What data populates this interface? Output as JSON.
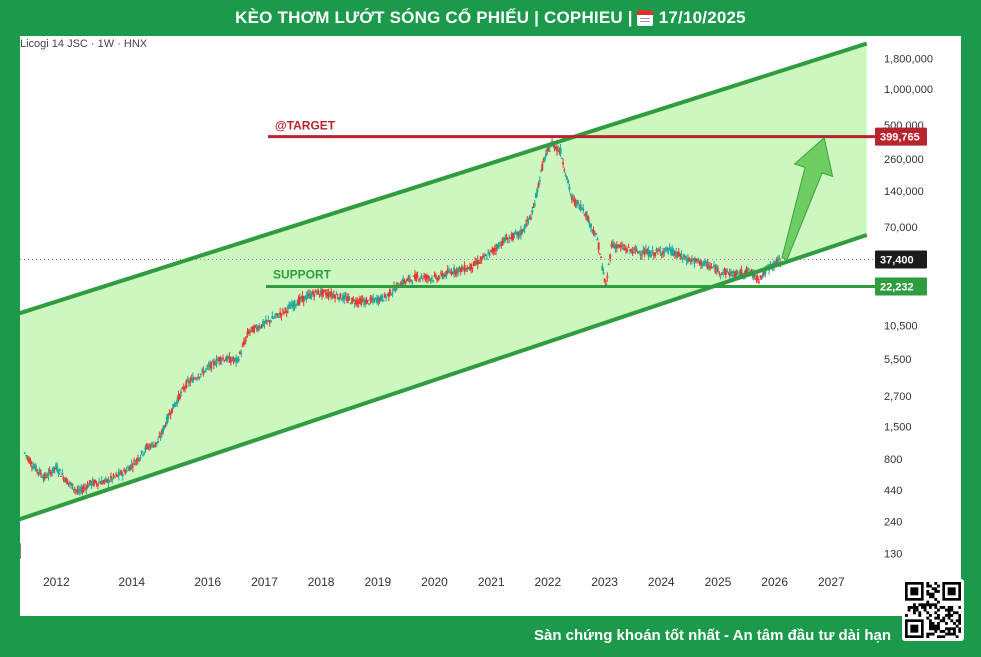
{
  "header": {
    "title": "KÈO THƠM LƯỚT SÓNG CỔ PHIẾU | COPHIEU |",
    "calendar_icon": "calendar-icon",
    "date": "17/10/2025"
  },
  "footer": {
    "slogan": "Sàn chứng khoán tốt nhất - An tâm đầu tư dài hạn",
    "qr_icon": "qr-code-icon"
  },
  "colors": {
    "frame": "#1a9a4a",
    "channel_fill": "#ccf7c0",
    "channel_line": "#2e9c3f",
    "target_line": "#b8242e",
    "support_line": "#2e9c3f",
    "up_candle": "#26a69a",
    "down_candle": "#e53935"
  },
  "chart_data": {
    "type": "candlestick",
    "symbol": "Licogi 14 JSC · 1W · HNX",
    "y_scale": "log",
    "ylim": [
      100,
      2500000
    ],
    "y_ticks": [
      "1,800,000",
      "1,000,000",
      "500,000",
      "260,000",
      "140,000",
      "70,000",
      "10,500",
      "5,500",
      "2,700",
      "1,500",
      "800",
      "440",
      "240",
      "130"
    ],
    "y_tick_values": [
      1800000,
      1000000,
      500000,
      260000,
      140000,
      70000,
      10500,
      5500,
      2700,
      1500,
      800,
      440,
      240,
      130
    ],
    "x_ticks": [
      "2012",
      "2014",
      "2016",
      "2017",
      "2018",
      "2019",
      "2020",
      "2021",
      "2022",
      "2023",
      "2024",
      "2025",
      "2026",
      "2027"
    ],
    "x_tick_values": [
      2012.0,
      2013.33,
      2014.67,
      2015.67,
      2016.67,
      2017.67,
      2018.67,
      2019.67,
      2020.67,
      2021.67,
      2022.67,
      2023.67,
      2024.67,
      2025.67
    ],
    "annotations": {
      "target_label": "@TARGET",
      "target_value": "399,765",
      "target_price": 399765,
      "support_label": "SUPPORT",
      "support_value": "22,232",
      "support_price": 22232,
      "last_price_label": "37,400",
      "last_price": 37400
    },
    "channel": {
      "upper_start": {
        "x": 2011.3,
        "y": 13000
      },
      "upper_end": {
        "x": 2026.3,
        "y": 2400000
      },
      "lower_start": {
        "x": 2011.3,
        "y": 245
      },
      "lower_end": {
        "x": 2026.3,
        "y": 60000
      }
    },
    "price_path": [
      {
        "x": 2011.45,
        "y": 900
      },
      {
        "x": 2011.6,
        "y": 700
      },
      {
        "x": 2011.8,
        "y": 560
      },
      {
        "x": 2012.0,
        "y": 680
      },
      {
        "x": 2012.2,
        "y": 520
      },
      {
        "x": 2012.4,
        "y": 420
      },
      {
        "x": 2012.6,
        "y": 500
      },
      {
        "x": 2012.9,
        "y": 520
      },
      {
        "x": 2013.2,
        "y": 620
      },
      {
        "x": 2013.4,
        "y": 760
      },
      {
        "x": 2013.6,
        "y": 1000
      },
      {
        "x": 2013.8,
        "y": 1100
      },
      {
        "x": 2014.0,
        "y": 1900
      },
      {
        "x": 2014.3,
        "y": 3400
      },
      {
        "x": 2014.6,
        "y": 4300
      },
      {
        "x": 2014.9,
        "y": 5600
      },
      {
        "x": 2015.2,
        "y": 5300
      },
      {
        "x": 2015.4,
        "y": 9300
      },
      {
        "x": 2015.7,
        "y": 11000
      },
      {
        "x": 2016.0,
        "y": 13500
      },
      {
        "x": 2016.3,
        "y": 17000
      },
      {
        "x": 2016.6,
        "y": 20000
      },
      {
        "x": 2016.9,
        "y": 19000
      },
      {
        "x": 2017.2,
        "y": 17000
      },
      {
        "x": 2017.5,
        "y": 16500
      },
      {
        "x": 2017.8,
        "y": 18000
      },
      {
        "x": 2018.1,
        "y": 24000
      },
      {
        "x": 2018.4,
        "y": 27000
      },
      {
        "x": 2018.7,
        "y": 26000
      },
      {
        "x": 2019.0,
        "y": 30000
      },
      {
        "x": 2019.3,
        "y": 32000
      },
      {
        "x": 2019.6,
        "y": 40000
      },
      {
        "x": 2019.9,
        "y": 54000
      },
      {
        "x": 2020.2,
        "y": 62000
      },
      {
        "x": 2020.4,
        "y": 90000
      },
      {
        "x": 2020.6,
        "y": 250000
      },
      {
        "x": 2020.75,
        "y": 350000
      },
      {
        "x": 2020.9,
        "y": 300000
      },
      {
        "x": 2021.1,
        "y": 120000
      },
      {
        "x": 2021.3,
        "y": 100000
      },
      {
        "x": 2021.55,
        "y": 55000
      },
      {
        "x": 2021.7,
        "y": 22000
      },
      {
        "x": 2021.8,
        "y": 50000
      },
      {
        "x": 2022.1,
        "y": 45000
      },
      {
        "x": 2022.5,
        "y": 42000
      },
      {
        "x": 2022.8,
        "y": 45000
      },
      {
        "x": 2023.1,
        "y": 38000
      },
      {
        "x": 2023.4,
        "y": 35000
      },
      {
        "x": 2023.7,
        "y": 30000
      },
      {
        "x": 2024.0,
        "y": 28000
      },
      {
        "x": 2024.2,
        "y": 30000
      },
      {
        "x": 2024.4,
        "y": 26000
      },
      {
        "x": 2024.6,
        "y": 33000
      },
      {
        "x": 2024.8,
        "y": 37400
      }
    ],
    "projection_arrow": {
      "from": {
        "x": 2024.85,
        "y": 38000
      },
      "to": {
        "x": 2025.55,
        "y": 390000
      }
    }
  }
}
